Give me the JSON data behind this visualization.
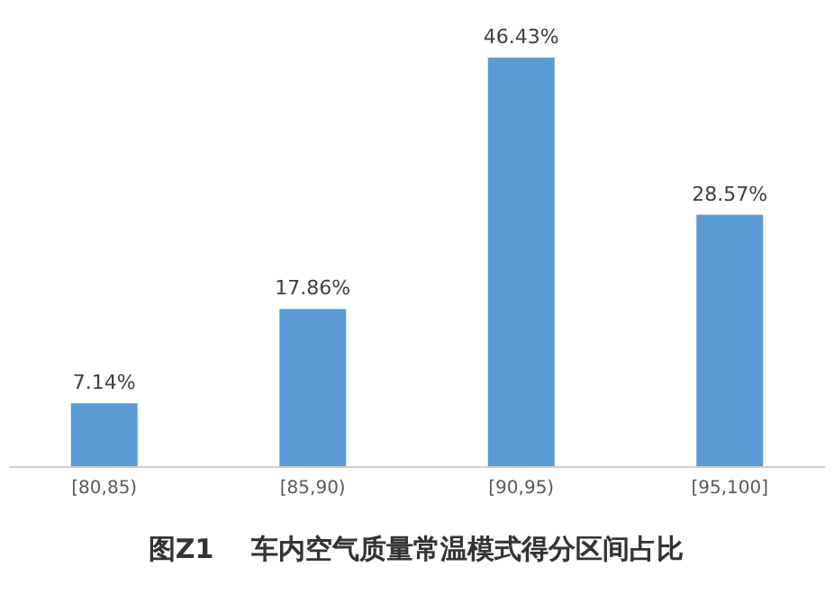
{
  "chart_data": {
    "type": "bar",
    "title": "图Z1    车内空气质量常温模式得分区间占比",
    "categories": [
      "[80,85)",
      "[85,90)",
      "[90,95)",
      "[95,100]"
    ],
    "values": [
      7.14,
      17.86,
      46.43,
      28.57
    ],
    "value_labels": [
      "7.14%",
      "17.86%",
      "46.43%",
      "28.57%"
    ],
    "color": "#5b9bd5"
  }
}
